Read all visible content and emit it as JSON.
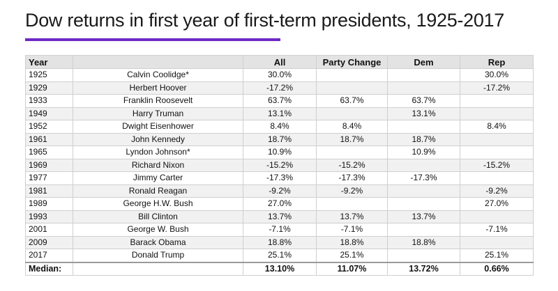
{
  "title": "Dow returns in first year of first-term presidents, 1925-2017",
  "accent_color": "#6e29c6",
  "chart_data": {
    "type": "table",
    "columns": [
      "Year",
      "",
      "All",
      "Party Change",
      "Dem",
      "Rep"
    ],
    "rows": [
      {
        "year": "1925",
        "president": "Calvin Coolidge*",
        "all": "30.0%",
        "party_change": "",
        "dem": "",
        "rep": "30.0%"
      },
      {
        "year": "1929",
        "president": "Herbert Hoover",
        "all": "-17.2%",
        "party_change": "",
        "dem": "",
        "rep": "-17.2%"
      },
      {
        "year": "1933",
        "president": "Franklin Roosevelt",
        "all": "63.7%",
        "party_change": "63.7%",
        "dem": "63.7%",
        "rep": ""
      },
      {
        "year": "1949",
        "president": "Harry Truman",
        "all": "13.1%",
        "party_change": "",
        "dem": "13.1%",
        "rep": ""
      },
      {
        "year": "1952",
        "president": "Dwight Eisenhower",
        "all": "8.4%",
        "party_change": "8.4%",
        "dem": "",
        "rep": "8.4%"
      },
      {
        "year": "1961",
        "president": "John Kennedy",
        "all": "18.7%",
        "party_change": "18.7%",
        "dem": "18.7%",
        "rep": ""
      },
      {
        "year": "1965",
        "president": "Lyndon Johnson*",
        "all": "10.9%",
        "party_change": "",
        "dem": "10.9%",
        "rep": ""
      },
      {
        "year": "1969",
        "president": "Richard Nixon",
        "all": "-15.2%",
        "party_change": "-15.2%",
        "dem": "",
        "rep": "-15.2%"
      },
      {
        "year": "1977",
        "president": "Jimmy Carter",
        "all": "-17.3%",
        "party_change": "-17.3%",
        "dem": "-17.3%",
        "rep": ""
      },
      {
        "year": "1981",
        "president": "Ronald Reagan",
        "all": "-9.2%",
        "party_change": "-9.2%",
        "dem": "",
        "rep": "-9.2%"
      },
      {
        "year": "1989",
        "president": "George H.W. Bush",
        "all": "27.0%",
        "party_change": "",
        "dem": "",
        "rep": "27.0%"
      },
      {
        "year": "1993",
        "president": "Bill Clinton",
        "all": "13.7%",
        "party_change": "13.7%",
        "dem": "13.7%",
        "rep": ""
      },
      {
        "year": "2001",
        "president": "George W. Bush",
        "all": "-7.1%",
        "party_change": "-7.1%",
        "dem": "",
        "rep": "-7.1%"
      },
      {
        "year": "2009",
        "president": "Barack Obama",
        "all": "18.8%",
        "party_change": "18.8%",
        "dem": "18.8%",
        "rep": ""
      },
      {
        "year": "2017",
        "president": "Donald Trump",
        "all": "25.1%",
        "party_change": "25.1%",
        "dem": "",
        "rep": "25.1%"
      }
    ],
    "median": {
      "label": "Median:",
      "all": "13.10%",
      "party_change": "11.07%",
      "dem": "13.72%",
      "rep": "0.66%"
    }
  }
}
